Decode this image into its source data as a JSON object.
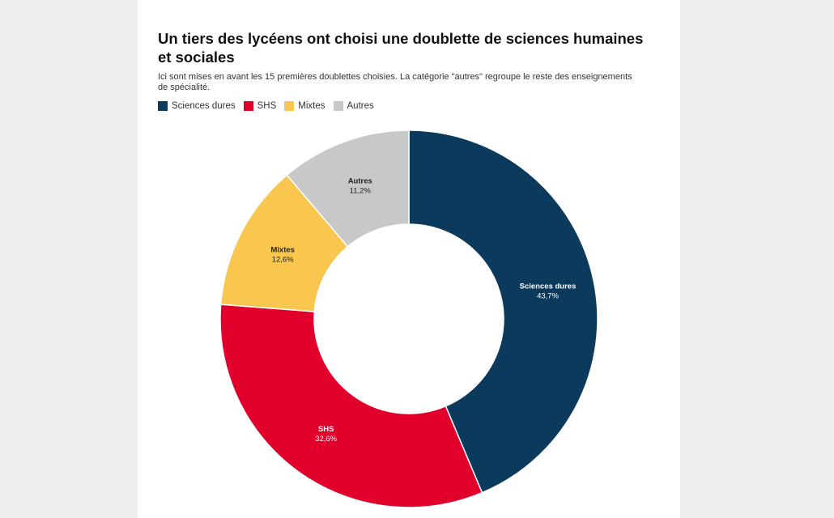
{
  "page": {
    "title": "Un tiers des lycéens ont choisi une doublette de sciences humaines et sociales",
    "subtitle": "Ici sont mises en avant les 15 premières doublettes choisies. La catégorie \"autres\" regroupe le reste des enseignements de spécialité."
  },
  "chart_data": {
    "type": "pie",
    "style": "donut",
    "title": "Un tiers des lycéens ont choisi une doublette de sciences humaines et sociales",
    "subtitle": "Ici sont mises en avant les 15 premières doublettes choisies. La catégorie \"autres\" regroupe le reste des enseignements de spécialité.",
    "legend_position": "top-left",
    "categories": [
      "Sciences dures",
      "SHS",
      "Mixtes",
      "Autres"
    ],
    "values": [
      43.7,
      32.6,
      12.6,
      11.2
    ],
    "value_labels": [
      "43,7%",
      "32,6%",
      "12,6%",
      "11,2%"
    ],
    "colors": [
      "#0c3a5c",
      "#e0002b",
      "#f9c74f",
      "#c8c8c8"
    ],
    "label_colors": [
      "#ffffff",
      "#ffffff",
      "#222222",
      "#222222"
    ]
  }
}
